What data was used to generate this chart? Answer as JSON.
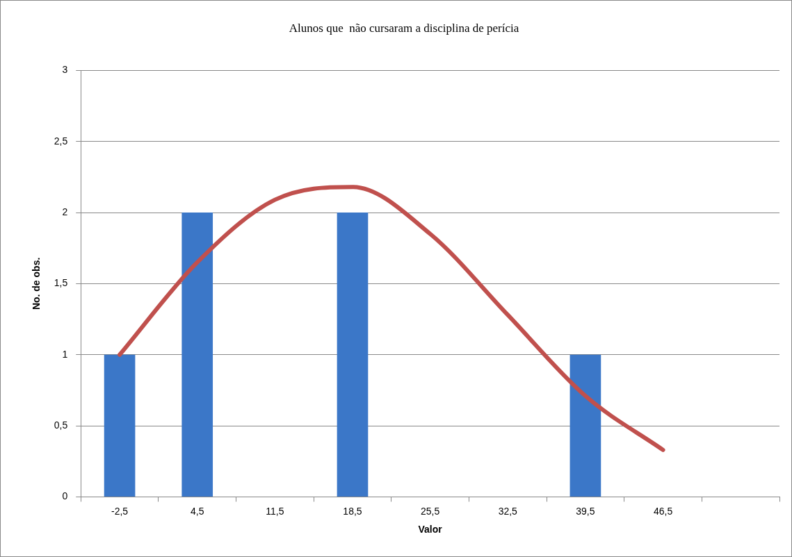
{
  "chart_data": {
    "type": "bar",
    "title": "Alunos que  não cursaram a disciplina de perícia",
    "xlabel": "Valor",
    "ylabel": "No. de obs.",
    "categories": [
      "-2,5",
      "4,5",
      "11,5",
      "18,5",
      "25,5",
      "32,5",
      "39,5",
      "46,5",
      null
    ],
    "series": [
      {
        "color": "#3b77c8",
        "values": [
          1,
          2,
          0,
          2,
          0,
          0,
          1,
          0,
          0
        ]
      },
      {
        "type": "line",
        "color": "#c0504d",
        "values": [
          1.0,
          1.65,
          2.09,
          2.18,
          1.85,
          1.28,
          0.71,
          0.33,
          null
        ]
      }
    ],
    "ylim": [
      0,
      3
    ],
    "yticks": [
      0,
      {
        "value": 0.5,
        "label": "0,5"
      },
      1,
      {
        "value": 1.5,
        "label": "1,5"
      },
      2,
      {
        "value": 2.5,
        "label": "2,5"
      },
      3
    ],
    "grid": "y",
    "legend": false,
    "marker": "none",
    "line_style": "solid"
  }
}
